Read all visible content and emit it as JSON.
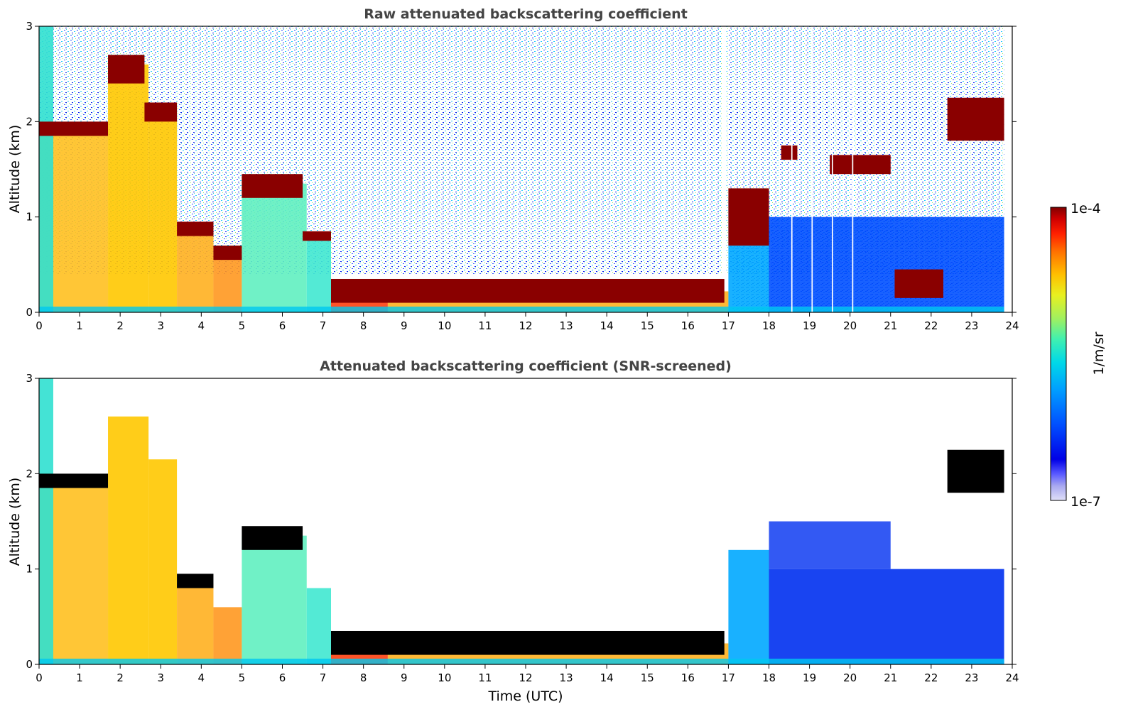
{
  "chart_data": [
    {
      "type": "heatmap",
      "title": "Raw attenuated backscattering coefficient",
      "xlabel": "",
      "ylabel": "Altitude (km)",
      "xlim": [
        0,
        24
      ],
      "ylim": [
        0,
        3
      ],
      "x_ticks": [
        "0",
        "1",
        "2",
        "3",
        "4",
        "5",
        "6",
        "7",
        "8",
        "9",
        "10",
        "11",
        "12",
        "13",
        "14",
        "15",
        "16",
        "17",
        "18",
        "19",
        "20",
        "21",
        "22",
        "23",
        "24"
      ],
      "y_ticks": [
        "0",
        "1",
        "2",
        "3"
      ],
      "layers": [
        {
          "x": [
            0.0,
            1.7
          ],
          "y": [
            1.85,
            2.0
          ],
          "value": "1e-4"
        },
        {
          "x": [
            1.7,
            2.6
          ],
          "y": [
            2.4,
            2.7
          ],
          "value": "1e-4"
        },
        {
          "x": [
            2.6,
            3.4
          ],
          "y": [
            2.0,
            2.2
          ],
          "value": "1e-4"
        },
        {
          "x": [
            3.4,
            4.3
          ],
          "y": [
            0.8,
            0.95
          ],
          "value": "1e-4"
        },
        {
          "x": [
            4.3,
            5.0
          ],
          "y": [
            0.55,
            0.7
          ],
          "value": "1e-4"
        },
        {
          "x": [
            5.0,
            6.5
          ],
          "y": [
            1.2,
            1.45
          ],
          "value": "1e-4"
        },
        {
          "x": [
            6.5,
            7.2
          ],
          "y": [
            0.75,
            0.85
          ],
          "value": "1e-4"
        },
        {
          "x": [
            7.2,
            16.9
          ],
          "y": [
            0.1,
            0.35
          ],
          "value": "1e-4"
        },
        {
          "x": [
            17.0,
            18.0
          ],
          "y": [
            0.7,
            1.3
          ],
          "value": "1e-4"
        },
        {
          "x": [
            18.3,
            18.7
          ],
          "y": [
            1.6,
            1.75
          ],
          "value": "1e-4"
        },
        {
          "x": [
            19.5,
            21.0
          ],
          "y": [
            1.45,
            1.65
          ],
          "value": "1e-4"
        },
        {
          "x": [
            21.1,
            22.3
          ],
          "y": [
            0.15,
            0.45
          ],
          "value": "1e-4"
        },
        {
          "x": [
            22.4,
            23.8
          ],
          "y": [
            1.8,
            2.25
          ],
          "value": "1e-4"
        }
      ]
    },
    {
      "type": "heatmap",
      "title": "Attenuated backscattering coefficient (SNR-screened)",
      "xlabel": "Time (UTC)",
      "ylabel": "Altitude (km)",
      "xlim": [
        0,
        24
      ],
      "ylim": [
        0,
        3
      ],
      "x_ticks": [
        "0",
        "1",
        "2",
        "3",
        "4",
        "5",
        "6",
        "7",
        "8",
        "9",
        "10",
        "11",
        "12",
        "13",
        "14",
        "15",
        "16",
        "17",
        "18",
        "19",
        "20",
        "21",
        "22",
        "23",
        "24"
      ],
      "y_ticks": [
        "0",
        "1",
        "2",
        "3"
      ],
      "layers": [
        {
          "x": [
            0.0,
            1.7
          ],
          "y": [
            1.85,
            2.0
          ],
          "value": "saturated"
        },
        {
          "x": [
            3.4,
            4.3
          ],
          "y": [
            0.8,
            0.95
          ],
          "value": "saturated"
        },
        {
          "x": [
            5.0,
            6.5
          ],
          "y": [
            1.2,
            1.45
          ],
          "value": "saturated"
        },
        {
          "x": [
            7.2,
            16.9
          ],
          "y": [
            0.1,
            0.35
          ],
          "value": "saturated"
        },
        {
          "x": [
            22.4,
            23.8
          ],
          "y": [
            1.8,
            2.25
          ],
          "value": "saturated"
        }
      ]
    }
  ],
  "colorbar": {
    "label": "1/m/sr",
    "max_label": "1e-4",
    "min_label": "1e-7",
    "scale": "log",
    "colors": [
      "#e0e0f8",
      "#a8a8f0",
      "#5a5aff",
      "#0000e6",
      "#0050ff",
      "#00a0ff",
      "#00d8e8",
      "#40f0b0",
      "#a0f060",
      "#e8f020",
      "#ffc000",
      "#ff7000",
      "#ff2000",
      "#d00000",
      "#800000"
    ]
  }
}
